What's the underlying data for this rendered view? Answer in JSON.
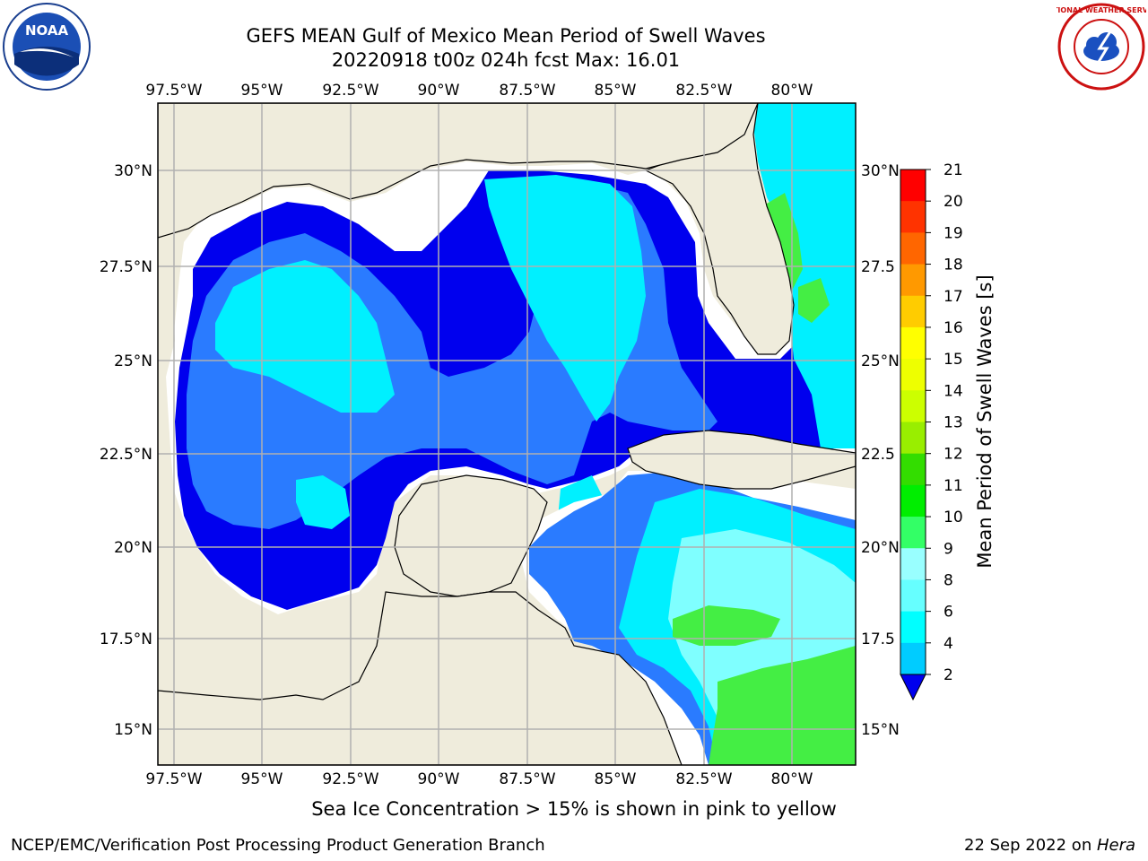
{
  "header": {
    "title_line1": "GEFS MEAN Gulf of Mexico Mean Period of Swell Waves",
    "title_line2": "20220918 t00z 024h fcst   Max: 16.01"
  },
  "logos": {
    "left": {
      "icon": "noaa-logo-icon",
      "text": "NOAA"
    },
    "right": {
      "icon": "nws-logo-icon",
      "text": "NATIONAL WEATHER SERVICE"
    }
  },
  "axes": {
    "lon_labels": [
      "97.5°W",
      "95°W",
      "92.5°W",
      "90°W",
      "87.5°W",
      "85°W",
      "82.5°W",
      "80°W"
    ],
    "lat_labels": [
      "30°N",
      "27.5°N",
      "25°N",
      "22.5°N",
      "20°N",
      "17.5°N",
      "15°N"
    ],
    "lat_labels_right": [
      "30°N",
      "27.5",
      "25°N",
      "22.5",
      "20°N",
      "17.5",
      "15°N"
    ]
  },
  "colorbar": {
    "label": "Mean Period of Swell Waves [s]",
    "ticks": [
      "2",
      "4",
      "6",
      "8",
      "9",
      "10",
      "11",
      "12",
      "13",
      "14",
      "15",
      "16",
      "17",
      "18",
      "19",
      "20",
      "21"
    ],
    "colors": [
      "#0033ff",
      "#00ccff",
      "#00ffff",
      "#66ffff",
      "#99ffff",
      "#33ff66",
      "#00ee00",
      "#33dd00",
      "#99ee00",
      "#ccff00",
      "#eeff00",
      "#ffff00",
      "#ffcc00",
      "#ff9900",
      "#ff6600",
      "#ff3300",
      "#ff0000"
    ],
    "extend_color": "#0000ee"
  },
  "colors": {
    "land": "#efecdc",
    "sea_blue": "#0000ee",
    "sea_medblue": "#2a7bff",
    "sea_cyan": "#00f0ff",
    "sea_lightcyan": "#7fffff",
    "sea_green": "#44ee44",
    "sea_yellow": "#ccff00",
    "grid": "#b0b0b0"
  },
  "footer": {
    "ice_note": "Sea Ice Concentration > 15% is shown in pink to yellow",
    "left": "NCEP/EMC/Verification Post Processing Product Generation Branch",
    "right_prefix": "22 Sep 2022 on ",
    "right_machine": "Hera"
  }
}
